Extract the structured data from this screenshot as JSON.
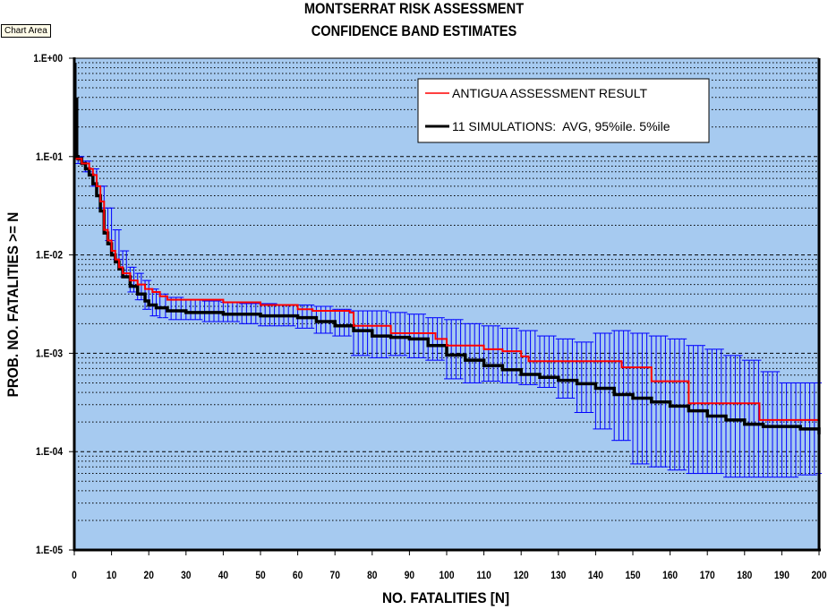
{
  "chart_area_tag": "Chart Area",
  "chart_data": {
    "type": "line",
    "title": "MONTSERRAT RISK ASSESSMENT",
    "subtitle": "CONFIDENCE BAND ESTIMATES",
    "xlabel": "NO. FATALITIES  [N]",
    "ylabel": "PROB. NO. FATALITIES >= N",
    "xlim": [
      0,
      200
    ],
    "ylim": [
      1e-05,
      1
    ],
    "yscale": "log",
    "x_ticks": [
      "0",
      "10",
      "20",
      "30",
      "40",
      "50",
      "60",
      "70",
      "80",
      "90",
      "100",
      "110",
      "120",
      "130",
      "140",
      "150",
      "160",
      "170",
      "180",
      "190",
      "200"
    ],
    "y_ticks": [
      "1.E+00",
      "1.E-01",
      "1.E-02",
      "1.E-03",
      "1.E-04",
      "1.E-05"
    ],
    "grid": true,
    "legend_position": "top-right",
    "colors": {
      "plot_bg": "#a6caf0",
      "antigua": "#ff0000",
      "avg": "#000000",
      "band": "#0000ff"
    },
    "series": [
      {
        "name": "ANTIGUA ASSESSMENT RESULT",
        "style": "step",
        "x": [
          0,
          2,
          4,
          5,
          6,
          7,
          8,
          9,
          10,
          11,
          12,
          13,
          15,
          17,
          19,
          21,
          23,
          25,
          40,
          50,
          60,
          64,
          74,
          75,
          85,
          97,
          100,
          110,
          115,
          120,
          122,
          147,
          155,
          165,
          184,
          200
        ],
        "y": [
          0.095,
          0.085,
          0.075,
          0.065,
          0.05,
          0.035,
          0.018,
          0.014,
          0.011,
          0.009,
          0.0075,
          0.0065,
          0.0055,
          0.005,
          0.0045,
          0.0042,
          0.0038,
          0.0035,
          0.0033,
          0.0031,
          0.0028,
          0.0027,
          0.0026,
          0.0019,
          0.0016,
          0.0014,
          0.0012,
          0.0011,
          0.00105,
          0.00093,
          0.00083,
          0.00072,
          0.00052,
          0.00031,
          0.00021,
          0.00021
        ]
      },
      {
        "name": "11 SIMULATIONS:  AVG, 95%ile. 5%ile",
        "style": "step",
        "x": [
          0,
          1,
          2,
          3,
          4,
          5,
          6,
          7,
          8,
          9,
          10,
          11,
          12,
          13,
          15,
          17,
          19,
          20,
          22,
          25,
          30,
          40,
          50,
          60,
          65,
          70,
          75,
          80,
          85,
          90,
          95,
          100,
          105,
          110,
          115,
          120,
          125,
          130,
          135,
          140,
          145,
          150,
          155,
          160,
          165,
          170,
          175,
          180,
          185,
          190,
          195,
          200
        ],
        "y": [
          0.1,
          0.095,
          0.085,
          0.075,
          0.065,
          0.053,
          0.04,
          0.028,
          0.0167,
          0.013,
          0.01,
          0.0085,
          0.0072,
          0.006,
          0.0048,
          0.004,
          0.0034,
          0.0031,
          0.0029,
          0.0027,
          0.0026,
          0.0025,
          0.0024,
          0.0023,
          0.0021,
          0.0019,
          0.0017,
          0.0015,
          0.00145,
          0.0014,
          0.0012,
          0.00096,
          0.00085,
          0.00075,
          0.00068,
          0.00061,
          0.00057,
          0.00053,
          0.00049,
          0.00044,
          0.00038,
          0.00035,
          0.00032,
          0.00029,
          0.00026,
          0.00023,
          0.00021,
          0.00019,
          0.00018,
          0.00018,
          0.00017,
          0.00015
        ]
      }
    ],
    "band": {
      "name": "95%ile / 5%ile",
      "x": [
        1,
        3,
        5,
        7,
        9,
        11,
        13,
        15,
        17,
        19,
        21,
        23,
        26,
        30,
        35,
        40,
        45,
        50,
        55,
        60,
        65,
        70,
        75,
        80,
        85,
        90,
        95,
        100,
        105,
        110,
        115,
        120,
        125,
        130,
        135,
        140,
        145,
        150,
        155,
        160,
        165,
        170,
        175,
        180,
        185,
        190,
        195,
        200
      ],
      "upper": [
        0.1,
        0.09,
        0.075,
        0.05,
        0.03,
        0.018,
        0.011,
        0.0075,
        0.0065,
        0.0055,
        0.0045,
        0.004,
        0.0037,
        0.0035,
        0.0034,
        0.0033,
        0.0032,
        0.0032,
        0.0031,
        0.0031,
        0.003,
        0.0028,
        0.0027,
        0.0027,
        0.0026,
        0.0025,
        0.0023,
        0.0022,
        0.002,
        0.0019,
        0.0018,
        0.0017,
        0.0015,
        0.0014,
        0.0013,
        0.0016,
        0.0017,
        0.0016,
        0.0015,
        0.0014,
        0.0012,
        0.0011,
        0.00095,
        0.00085,
        0.00065,
        0.0005,
        0.0005,
        0.0005
      ],
      "lower": [
        0.085,
        0.07,
        0.05,
        0.03,
        0.014,
        0.009,
        0.006,
        0.0042,
        0.0035,
        0.0028,
        0.0024,
        0.0023,
        0.0022,
        0.0022,
        0.0021,
        0.0021,
        0.002,
        0.0019,
        0.0019,
        0.0018,
        0.0016,
        0.0015,
        0.00095,
        0.0009,
        0.00095,
        0.0009,
        0.00085,
        0.00055,
        0.0005,
        0.00052,
        0.0005,
        0.00048,
        0.00045,
        0.00035,
        0.00025,
        0.00017,
        0.00013,
        7.5e-05,
        7e-05,
        6.5e-05,
        6e-05,
        6e-05,
        5.5e-05,
        5.5e-05,
        5.5e-05,
        5.5e-05,
        5.8e-05,
        6e-05
      ]
    }
  }
}
